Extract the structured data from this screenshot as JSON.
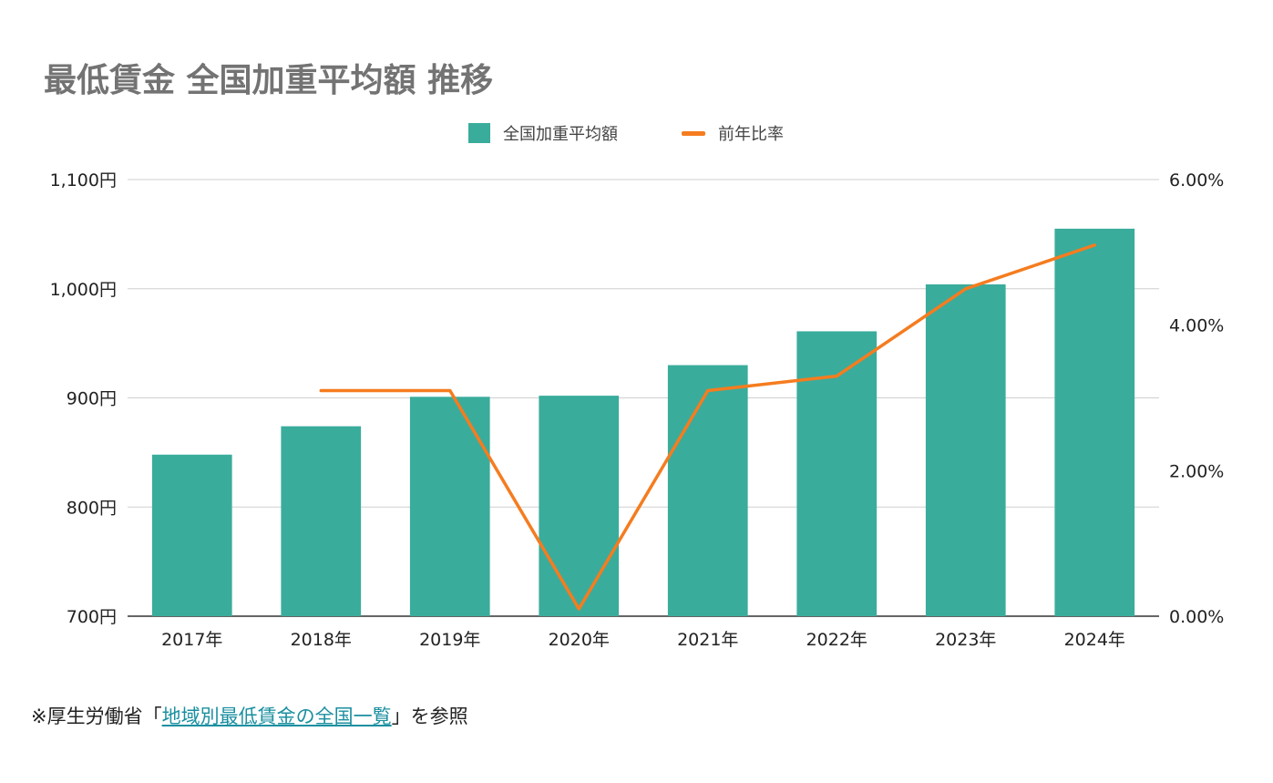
{
  "chart_data": {
    "type": "bar+line",
    "title": "最低賃金 全国加重平均額 推移",
    "categories": [
      "2017年",
      "2018年",
      "2019年",
      "2020年",
      "2021年",
      "2022年",
      "2023年",
      "2024年"
    ],
    "series": [
      {
        "name": "全国加重平均額",
        "type": "bar",
        "axis": "left",
        "color": "#3aac9c",
        "values": [
          848,
          874,
          901,
          902,
          930,
          961,
          1004,
          1055
        ]
      },
      {
        "name": "前年比率",
        "type": "line",
        "axis": "right",
        "color": "#f57c1f",
        "values": [
          null,
          3.1,
          3.1,
          0.1,
          3.1,
          3.3,
          4.5,
          5.1
        ]
      }
    ],
    "y_left": {
      "ylim": [
        700,
        1100
      ],
      "ticks": [
        700,
        800,
        900,
        1000,
        1100
      ],
      "tick_labels": [
        "700円",
        "800円",
        "900円",
        "1,000円",
        "1,100円"
      ]
    },
    "y_right": {
      "ylim": [
        0,
        6
      ],
      "ticks": [
        0,
        2,
        4,
        6
      ],
      "tick_labels": [
        "0.00%",
        "2.00%",
        "4.00%",
        "6.00%"
      ]
    },
    "grid": true,
    "legend_position": "top-center"
  },
  "footnote": {
    "prefix": "※厚生労働省「",
    "link_text": "地域別最低賃金の全国一覧",
    "suffix": "」を参照"
  }
}
